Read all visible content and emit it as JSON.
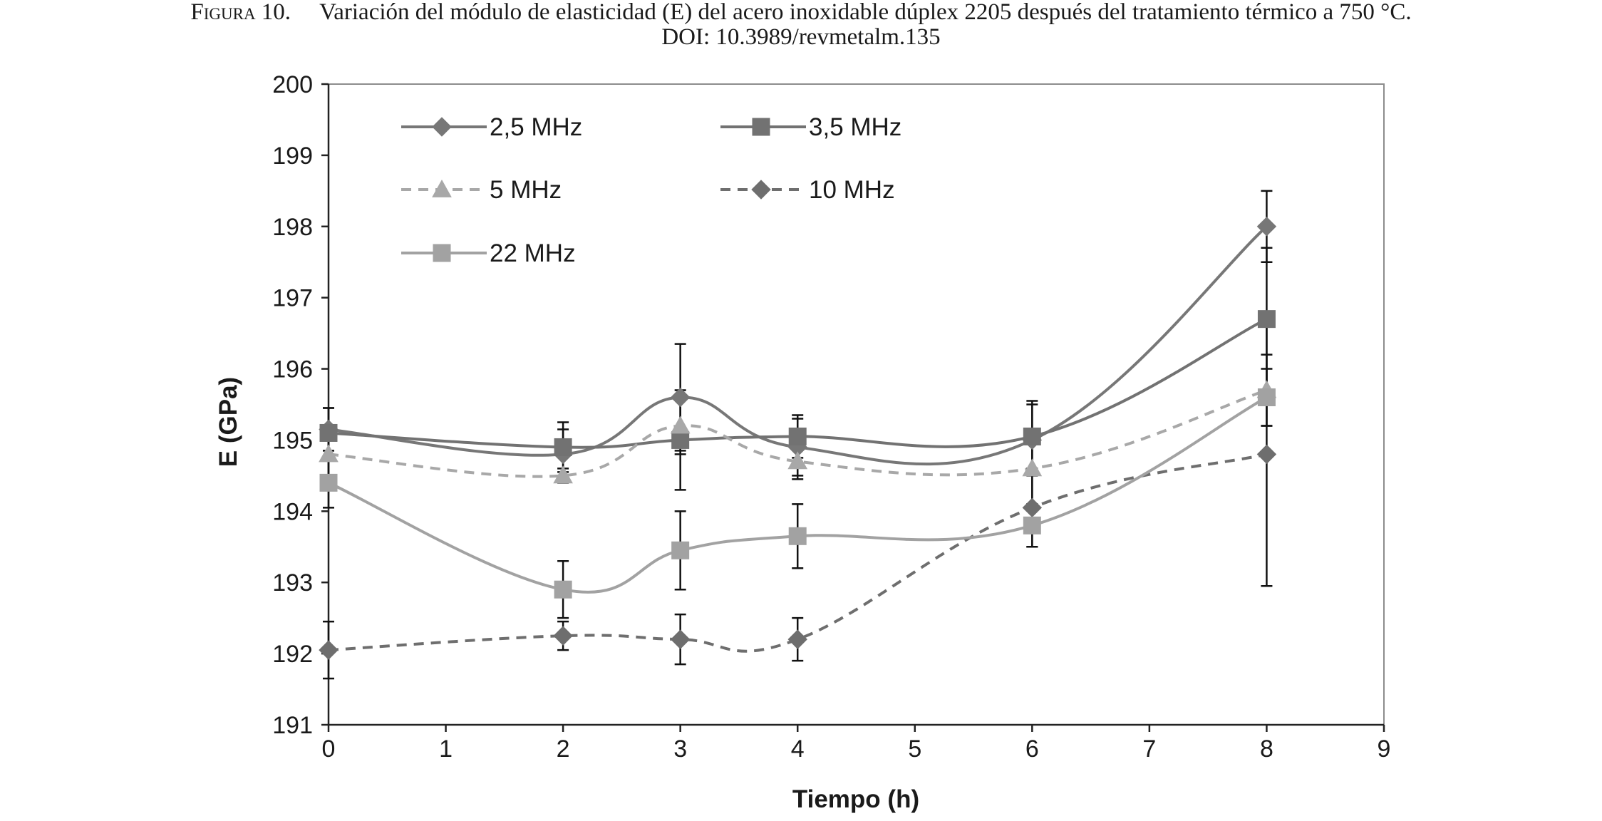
{
  "caption": {
    "label": "Figura 10.",
    "text": "Variación del módulo de elasticidad (E) del acero inoxidable dúplex 2205 después del tratamiento térmico a 750 °C.",
    "doi": "DOI: 10.3989/revmetalm.135"
  },
  "chart_data": {
    "type": "line",
    "title": "",
    "xlabel": "Tiempo (h)",
    "ylabel": "E (GPa)",
    "xlim": [
      0,
      9
    ],
    "ylim": [
      191,
      200
    ],
    "x_ticks": [
      0,
      1,
      2,
      3,
      4,
      5,
      6,
      7,
      8,
      9
    ],
    "y_ticks": [
      191,
      192,
      193,
      194,
      195,
      196,
      197,
      198,
      199,
      200
    ],
    "grid": false,
    "legend_position": "top-left inside plot area",
    "smooth_lines": true,
    "series": [
      {
        "name": "2,5 MHz",
        "color": "#777777",
        "line_style": "solid",
        "marker": "diamond",
        "x": [
          0,
          2,
          3,
          4,
          6,
          8
        ],
        "y": [
          195.15,
          194.8,
          195.6,
          194.9,
          195.0,
          198.0
        ],
        "error": [
          0.3,
          0.35,
          0.75,
          0.4,
          0.5,
          0.5
        ]
      },
      {
        "name": "3,5 MHz",
        "color": "#727272",
        "line_style": "solid",
        "marker": "square",
        "x": [
          0,
          2,
          3,
          4,
          6,
          8
        ],
        "y": [
          195.1,
          194.9,
          195.0,
          195.05,
          195.05,
          196.7
        ],
        "error": [
          0.35,
          0.35,
          0.7,
          0.3,
          0.5,
          1.0
        ]
      },
      {
        "name": "5 MHz",
        "color": "#a8a8a8",
        "line_style": "dashed",
        "marker": "triangle",
        "x": [
          0,
          2,
          3,
          4,
          6,
          8
        ],
        "y": [
          194.8,
          194.5,
          195.2,
          194.7,
          194.6,
          195.7
        ],
        "error": [
          0.35,
          0.1,
          0.4,
          0.25,
          0.5,
          0.5
        ]
      },
      {
        "name": "10 MHz",
        "color": "#6e6e6e",
        "line_style": "dashed",
        "marker": "diamond",
        "x": [
          0,
          2,
          3,
          4,
          6,
          8
        ],
        "y": [
          192.05,
          192.25,
          192.2,
          192.2,
          194.05,
          194.8
        ],
        "error": [
          0.4,
          0.2,
          0.35,
          0.3,
          0.55,
          1.85
        ]
      },
      {
        "name": "22 MHz",
        "color": "#a2a2a2",
        "line_style": "solid",
        "marker": "square",
        "x": [
          0,
          2,
          3,
          4,
          6,
          8
        ],
        "y": [
          194.4,
          192.9,
          193.45,
          193.65,
          193.8,
          195.6
        ],
        "error": [
          0.35,
          0.4,
          0.55,
          0.45,
          0.3,
          0.4
        ]
      }
    ]
  }
}
